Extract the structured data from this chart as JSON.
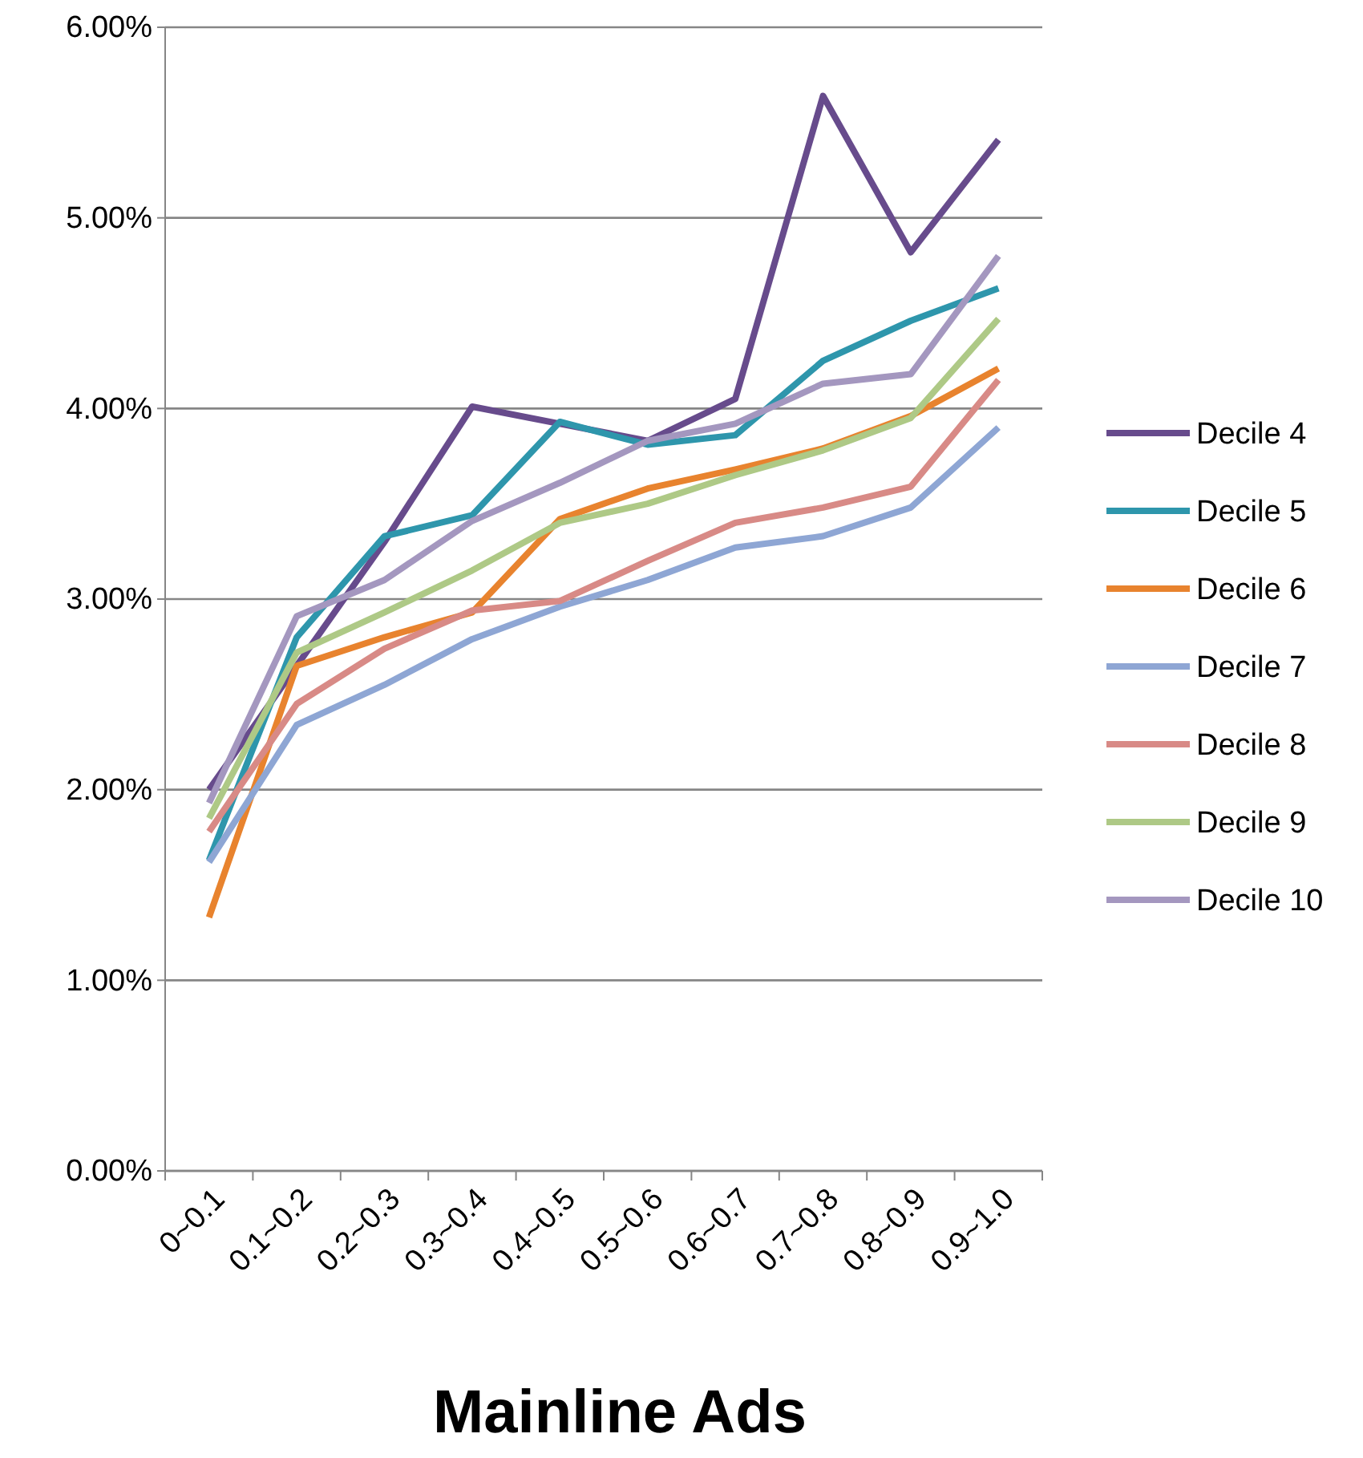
{
  "chart_data": {
    "type": "line",
    "xlabel": "Mainline Ads",
    "categories": [
      "0~0.1",
      "0.1~0.2",
      "0.2~0.3",
      "0.3~0.4",
      "0.4~0.5",
      "0.5~0.6",
      "0.6~0.7",
      "0.7~0.8",
      "0.8~0.9",
      "0.9~1.0"
    ],
    "ylim": [
      0,
      6
    ],
    "yticks": [
      {
        "value": 0,
        "label": "0.00%"
      },
      {
        "value": 1,
        "label": "1.00%"
      },
      {
        "value": 2,
        "label": "2.00%"
      },
      {
        "value": 3,
        "label": "3.00%"
      },
      {
        "value": 4,
        "label": "4.00%"
      },
      {
        "value": 5,
        "label": "5.00%"
      },
      {
        "value": 6,
        "label": "6.00%"
      }
    ],
    "grid": "y",
    "legend": "right",
    "marker": "none",
    "line_style": "solid",
    "series": [
      {
        "name": "Decile 4",
        "color": "#674b8c",
        "values": [
          2.0,
          2.65,
          3.3,
          4.01,
          3.92,
          3.83,
          4.05,
          5.64,
          4.82,
          5.41
        ]
      },
      {
        "name": "Decile 5",
        "color": "#2e96ac",
        "values": [
          1.63,
          2.8,
          3.33,
          3.44,
          3.93,
          3.81,
          3.86,
          4.25,
          4.46,
          4.63
        ]
      },
      {
        "name": "Decile 6",
        "color": "#e8832e",
        "values": [
          1.33,
          2.65,
          2.8,
          2.93,
          3.42,
          3.58,
          3.68,
          3.79,
          3.96,
          4.21
        ]
      },
      {
        "name": "Decile 7",
        "color": "#8ea6d4",
        "values": [
          1.62,
          2.34,
          2.55,
          2.79,
          2.96,
          3.1,
          3.27,
          3.33,
          3.48,
          3.9
        ]
      },
      {
        "name": "Decile 8",
        "color": "#d88a86",
        "values": [
          1.78,
          2.45,
          2.74,
          2.94,
          2.99,
          3.2,
          3.4,
          3.48,
          3.59,
          4.15
        ]
      },
      {
        "name": "Decile 9",
        "color": "#aec986",
        "values": [
          1.85,
          2.72,
          2.93,
          3.15,
          3.4,
          3.5,
          3.65,
          3.78,
          3.95,
          4.47
        ]
      },
      {
        "name": "Decile 10",
        "color": "#a497bf",
        "values": [
          1.93,
          2.91,
          3.1,
          3.41,
          3.61,
          3.83,
          3.92,
          4.13,
          4.18,
          4.8
        ]
      }
    ]
  }
}
